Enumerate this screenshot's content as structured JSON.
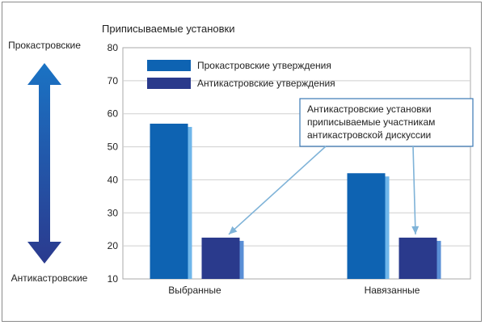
{
  "chart_data": {
    "type": "bar",
    "title": "Приписываемые установки",
    "xlabel": "",
    "ylabel": "",
    "ylim": [
      10,
      80
    ],
    "yticks": [
      10,
      20,
      30,
      40,
      50,
      60,
      70,
      80
    ],
    "grid": true,
    "categories": [
      "Выбранные",
      "Навязанные"
    ],
    "series": [
      {
        "name": "Прокастровские утверждения",
        "values": [
          57,
          42
        ]
      },
      {
        "name": "Антикастровские утверждения",
        "values": [
          22.5,
          22.5
        ]
      }
    ],
    "legend_position": "top-left",
    "annotation": {
      "lines": [
        "Антикастровские установки",
        "приписываемые участникам",
        "антикастровской дискуссии"
      ],
      "points_to": "Антикастровские утверждения"
    },
    "side_scale": {
      "top_label": "Прокастровские",
      "bottom_label": "Антикастровские"
    }
  },
  "colors": {
    "pro": "#0e63b2",
    "pro_edge": "#6fb6ea",
    "anti": "#2a3a8c",
    "anti_edge": "#5a8fd6",
    "arrow_top": "#1a73c4",
    "arrow_bottom": "#2b3a8e",
    "annotation_arrow": "#7fb3d8",
    "grid": "#cfcfcf"
  }
}
